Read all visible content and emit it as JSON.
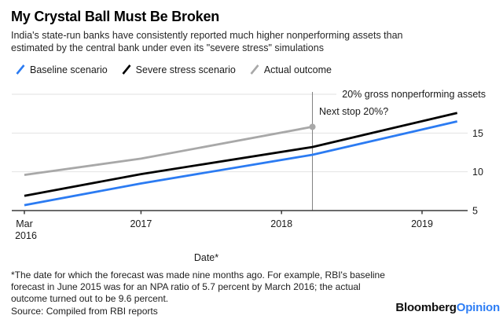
{
  "header": {
    "title": "My Crystal Ball Must Be Broken",
    "subtitle_lines": [
      "India's state-run banks have consistently reported much higher nonperforming assets than",
      "estimated by the central bank under even its \"severe stress\" simulations"
    ]
  },
  "legend": {
    "items": [
      {
        "label": "Baseline scenario",
        "color": "#2b7bf2"
      },
      {
        "label": "Severe stress scenario",
        "color": "#000000"
      },
      {
        "label": "Actual outcome",
        "color": "#a8a8a8"
      }
    ]
  },
  "chart_data": {
    "type": "line",
    "x_unit": "decimal_year",
    "xlabel": "Date*",
    "ylim": [
      5,
      20
    ],
    "y_ticks": [
      5,
      10,
      15
    ],
    "grid": true,
    "legend_position": "top-left",
    "top_reference": {
      "value": 20,
      "label": "20% gross nonperforming assets"
    },
    "vline": {
      "x": 2018.22,
      "label": "Next stop 20%?"
    },
    "x_ticks": [
      {
        "label": "Mar",
        "label2": "2016",
        "value": 2016.17
      },
      {
        "label": "2017",
        "value": 2017
      },
      {
        "label": "2018",
        "value": 2018
      },
      {
        "label": "2019",
        "value": 2019
      }
    ],
    "series": [
      {
        "name": "Baseline scenario",
        "color": "#2b7bf2",
        "points": [
          [
            2016.17,
            5.7
          ],
          [
            2017.0,
            8.5
          ],
          [
            2018.22,
            12.2
          ],
          [
            2019.25,
            16.5
          ]
        ]
      },
      {
        "name": "Severe stress scenario",
        "color": "#000000",
        "points": [
          [
            2016.17,
            6.9
          ],
          [
            2017.0,
            9.7
          ],
          [
            2018.22,
            13.2
          ],
          [
            2019.25,
            17.6
          ]
        ]
      },
      {
        "name": "Actual outcome",
        "color": "#a8a8a8",
        "end_dot": true,
        "points": [
          [
            2016.17,
            9.6
          ],
          [
            2017.0,
            11.7
          ],
          [
            2018.22,
            15.8
          ]
        ]
      }
    ]
  },
  "footer": {
    "footnote_lines": [
      "*The date for which the forecast was made nine months ago. For example, RBI's baseline",
      "forecast in June 2015 was for an NPA ratio of 5.7 percent by March 2016; the actual",
      "outcome turned out to be 9.6 percent."
    ],
    "source": "Source: Compiled from RBI reports",
    "logo": {
      "black": "Bloomberg",
      "blue": "Opinion"
    }
  },
  "colors": {
    "accent_blue": "#2b7bf2",
    "line_gray": "#a8a8a8",
    "gridline": "#e2e2e2",
    "axis": "#3a3a3a",
    "vline": "#7f7f7f",
    "text": "#1a1a1a"
  }
}
